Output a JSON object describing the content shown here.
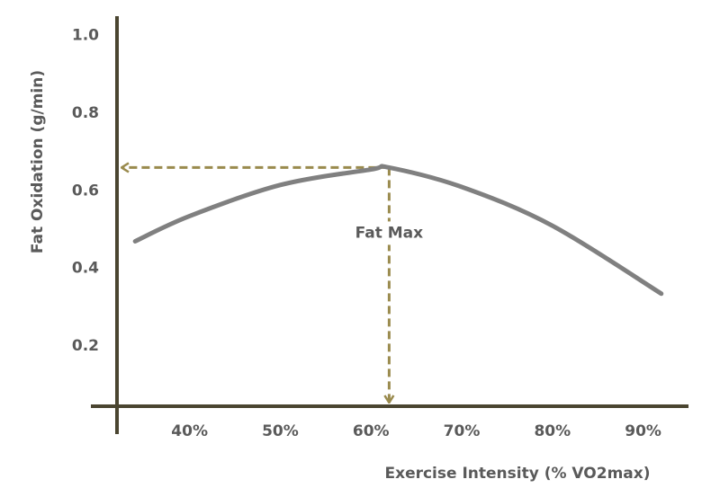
{
  "chart_data": {
    "type": "line",
    "x_label": "Exercise Intensity (% VO2max)",
    "y_label": "Fat Oxidation (g/min)",
    "x": [
      34,
      40,
      50,
      60,
      62,
      70,
      80,
      92
    ],
    "series": [
      {
        "color": "#808080",
        "values": [
          0.47,
          0.535,
          0.615,
          0.655,
          0.66,
          0.61,
          0.51,
          0.335
        ]
      }
    ],
    "xlim": [
      32,
      95
    ],
    "ylim": [
      0.045,
      1.05
    ],
    "xticks": [
      {
        "value": 40,
        "label": "40%"
      },
      {
        "value": 50,
        "label": "50%"
      },
      {
        "value": 60,
        "label": "60%"
      },
      {
        "value": 70,
        "label": "70%"
      },
      {
        "value": 80,
        "label": "80%"
      },
      {
        "value": 90,
        "label": "90%"
      }
    ],
    "yticks": [
      {
        "value": 0.2,
        "label": "0.2"
      },
      {
        "value": 0.4,
        "label": "0.4"
      },
      {
        "value": 0.6,
        "label": "0.6"
      },
      {
        "value": 0.8,
        "label": "0.8"
      },
      {
        "value": 1,
        "label": "1.0"
      }
    ],
    "annotation": {
      "text": "Fat Max",
      "x": 62,
      "y": 0.66,
      "color": "#9a8b4e"
    },
    "axis_color": "#4a4530"
  }
}
